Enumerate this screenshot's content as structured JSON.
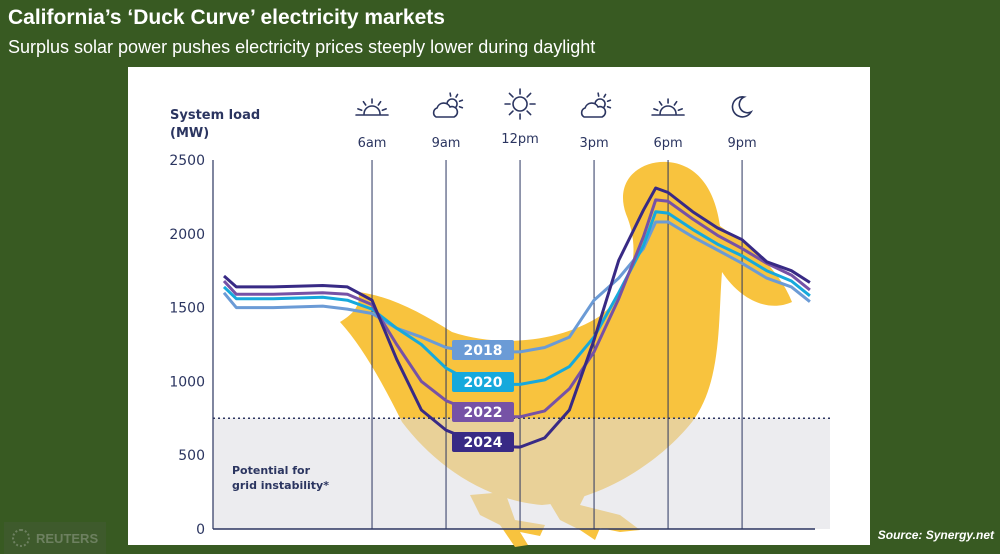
{
  "header": {
    "title": "California’s ‘Duck Curve’ electricity markets",
    "subtitle": "Surplus solar power pushes electricity prices steeply lower during daylight"
  },
  "footer": {
    "source": "Source: Synergy.net",
    "logo": "REUTERS"
  },
  "chart_data": {
    "type": "line",
    "ylabel_line1": "System load",
    "ylabel_line2": "(MW)",
    "ylim": [
      0,
      2500
    ],
    "yticks": [
      0,
      500,
      1000,
      1500,
      2000,
      2500
    ],
    "xlim_hours": [
      0,
      24
    ],
    "time_marks": [
      {
        "label": "6am",
        "hour": 6,
        "icon": "sunrise-icon"
      },
      {
        "label": "9am",
        "hour": 9,
        "icon": "cloud-sun-icon"
      },
      {
        "label": "12pm",
        "hour": 12,
        "icon": "sun-icon"
      },
      {
        "label": "3pm",
        "hour": 15,
        "icon": "cloud-sun-icon"
      },
      {
        "label": "6pm",
        "hour": 18,
        "icon": "sunset-icon"
      },
      {
        "label": "9pm",
        "hour": 21,
        "icon": "moon-icon"
      }
    ],
    "threshold": {
      "value": 750,
      "label_line1": "Potential for",
      "label_line2": "grid instability*"
    },
    "x_hours": [
      0,
      0.5,
      2,
      4,
      5,
      6,
      7,
      8,
      9,
      10,
      11,
      12,
      13,
      14,
      15,
      16,
      17,
      17.5,
      18,
      19,
      20,
      21,
      22,
      23,
      23.75
    ],
    "series": [
      {
        "name": "2018",
        "color": "#6b9bd6",
        "values": [
          1600,
          1500,
          1500,
          1510,
          1490,
          1460,
          1360,
          1300,
          1230,
          1200,
          1200,
          1200,
          1230,
          1300,
          1550,
          1700,
          1900,
          2080,
          2080,
          1980,
          1890,
          1800,
          1700,
          1640,
          1540
        ]
      },
      {
        "name": "2020",
        "color": "#16a9dc",
        "values": [
          1640,
          1560,
          1560,
          1570,
          1550,
          1490,
          1360,
          1250,
          1090,
          1000,
          980,
          980,
          1010,
          1100,
          1300,
          1600,
          1920,
          2150,
          2140,
          2030,
          1930,
          1850,
          1750,
          1680,
          1580
        ]
      },
      {
        "name": "2022",
        "color": "#7652a6",
        "values": [
          1680,
          1590,
          1590,
          1600,
          1590,
          1520,
          1250,
          1000,
          870,
          800,
          760,
          760,
          800,
          950,
          1200,
          1560,
          1980,
          2230,
          2220,
          2100,
          1990,
          1900,
          1800,
          1720,
          1620
        ]
      },
      {
        "name": "2024",
        "color": "#382a85",
        "values": [
          1714,
          1640,
          1640,
          1650,
          1640,
          1550,
          1150,
          806,
          670,
          600,
          560,
          555,
          617,
          806,
          1280,
          1820,
          2160,
          2310,
          2280,
          2150,
          2040,
          1960,
          1810,
          1750,
          1670
        ]
      }
    ],
    "colors": {
      "duck": "#f8c33e",
      "instability_zone": "#e6e7ea",
      "axis": "#2b3560",
      "background": "#385a22"
    }
  }
}
